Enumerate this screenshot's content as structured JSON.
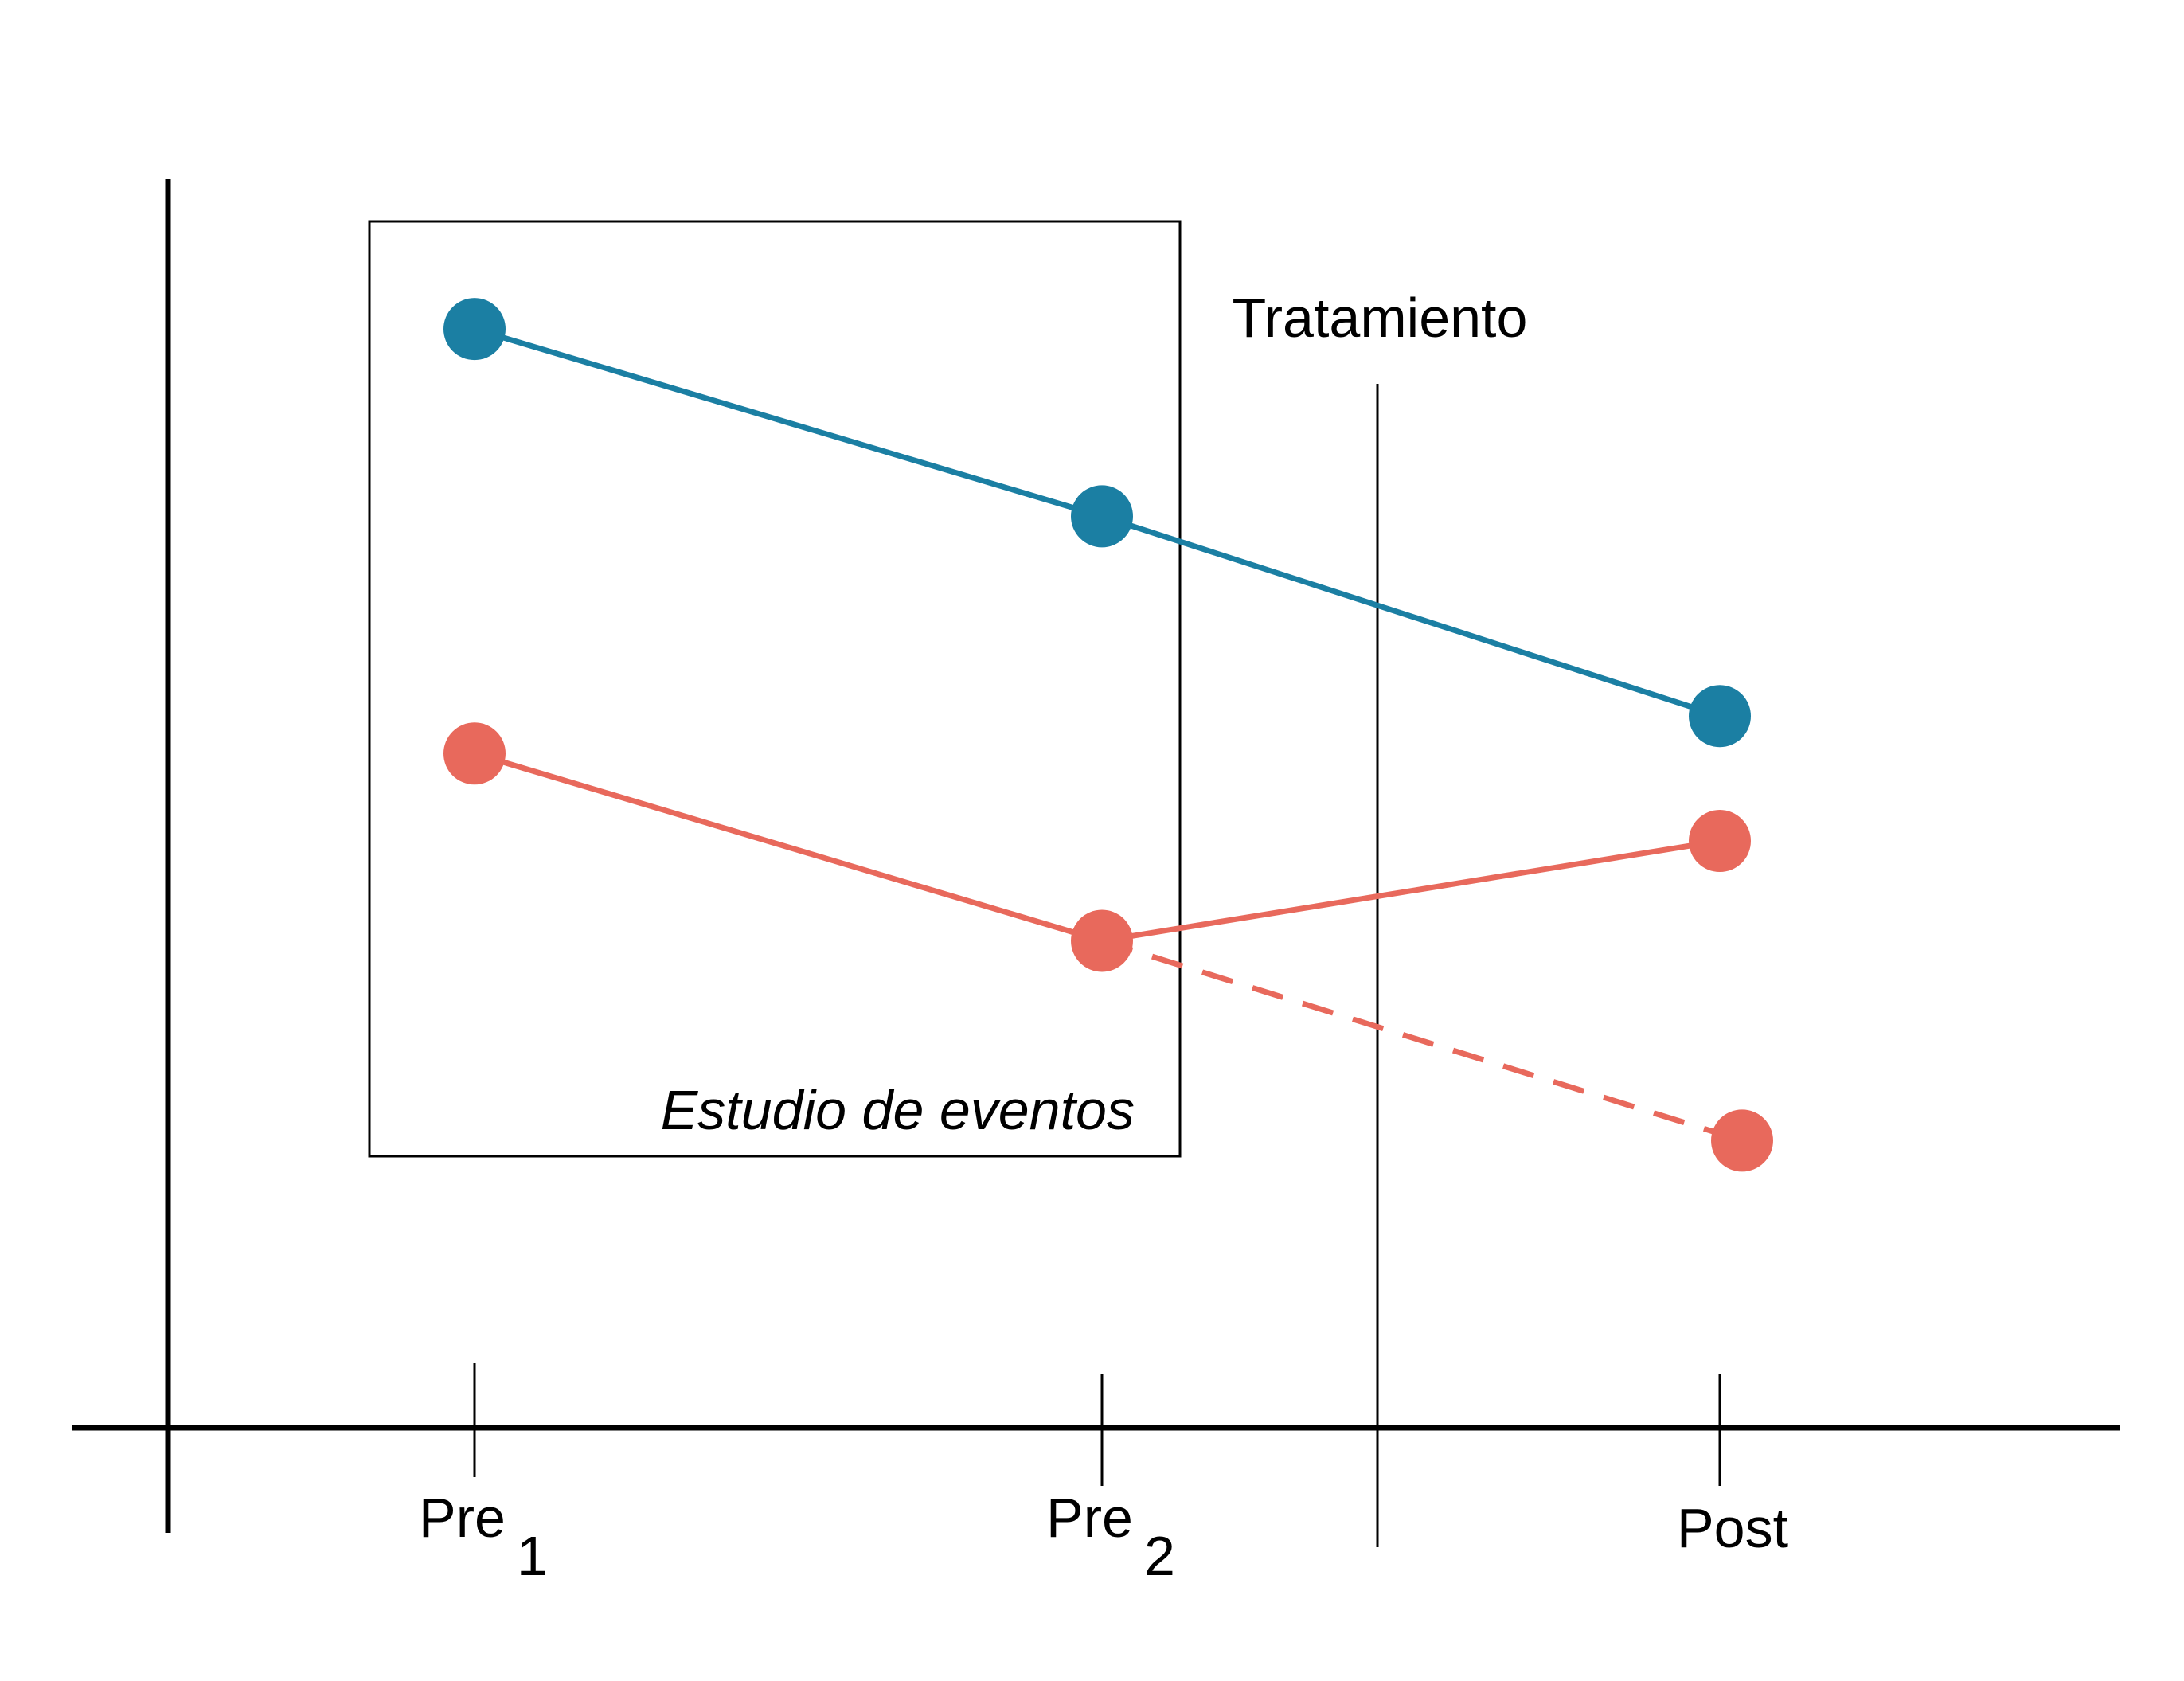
{
  "chart_data": {
    "type": "line",
    "title": "",
    "xlabel": "",
    "ylabel": "",
    "grid": false,
    "legend": "none",
    "x_ticks": [
      {
        "main": "Pre",
        "sub": "1"
      },
      {
        "main": "Pre",
        "sub": "2"
      },
      {
        "main": "Post",
        "sub": ""
      }
    ],
    "x_categories": [
      "Pre 1",
      "Pre 2",
      "Post"
    ],
    "ylim": [
      0,
      100
    ],
    "series": [
      {
        "color": "#1b7fa3",
        "style": "solid",
        "points": [
          {
            "x": "Pre 1",
            "y": 88
          },
          {
            "x": "Pre 2",
            "y": 73
          },
          {
            "x": "Post",
            "y": 57
          }
        ]
      },
      {
        "color": "#e8695c",
        "style": "solid",
        "points": [
          {
            "x": "Pre 1",
            "y": 54
          },
          {
            "x": "Pre 2",
            "y": 39
          },
          {
            "x": "Post",
            "y": 47
          }
        ]
      },
      {
        "color": "#e8695c",
        "style": "dashed",
        "points": [
          {
            "x": "Pre 2",
            "y": 39
          },
          {
            "x": "Post",
            "y": 23
          }
        ]
      }
    ],
    "annotations": {
      "treatment_label": "Tratamiento",
      "treatment_between": [
        "Pre 2",
        "Post"
      ],
      "event_study_label": "Estudio de eventos",
      "event_study_covers": [
        "Pre 1",
        "Pre 2"
      ]
    }
  }
}
